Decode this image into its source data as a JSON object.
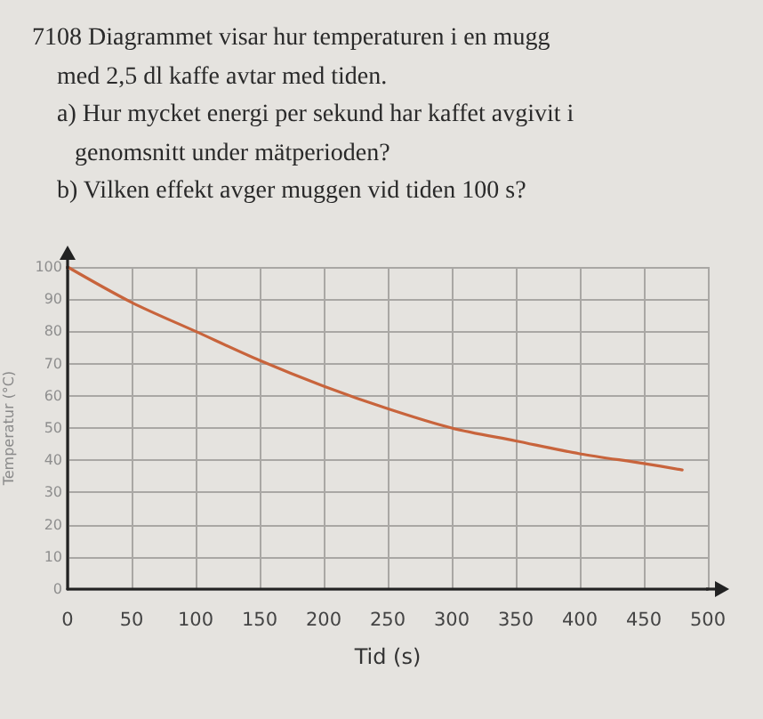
{
  "chart_data": {
    "type": "line",
    "title": "7108 Diagrammet visar hur temperaturen i en mugg med 2,5 dl kaffe avtar med tiden.",
    "annotations": [
      "a) Hur mycket energi per sekund har kaffet avgivit i genomsnitt under mätperioden?",
      "b) Vilken effekt avger muggen vid tiden 100 s?"
    ],
    "xlabel": "Tid (s)",
    "ylabel": "Temperatur (°C)",
    "x": [
      0,
      50,
      100,
      150,
      200,
      250,
      300,
      350,
      400,
      450,
      480
    ],
    "series": [
      {
        "color": "#c8643c",
        "values": [
          100,
          89,
          80,
          71,
          63,
          56,
          50,
          46,
          42,
          39,
          37
        ]
      }
    ],
    "xlim": [
      0,
      500
    ],
    "xticks": [
      0,
      50,
      100,
      150,
      200,
      250,
      300,
      350,
      400,
      450,
      500
    ],
    "ylim": [
      0,
      100
    ],
    "yticks": [
      0,
      10,
      20,
      30,
      40,
      50,
      60,
      70,
      80,
      90,
      100
    ],
    "grid": true,
    "marker": "none",
    "line_style": "solid"
  }
}
